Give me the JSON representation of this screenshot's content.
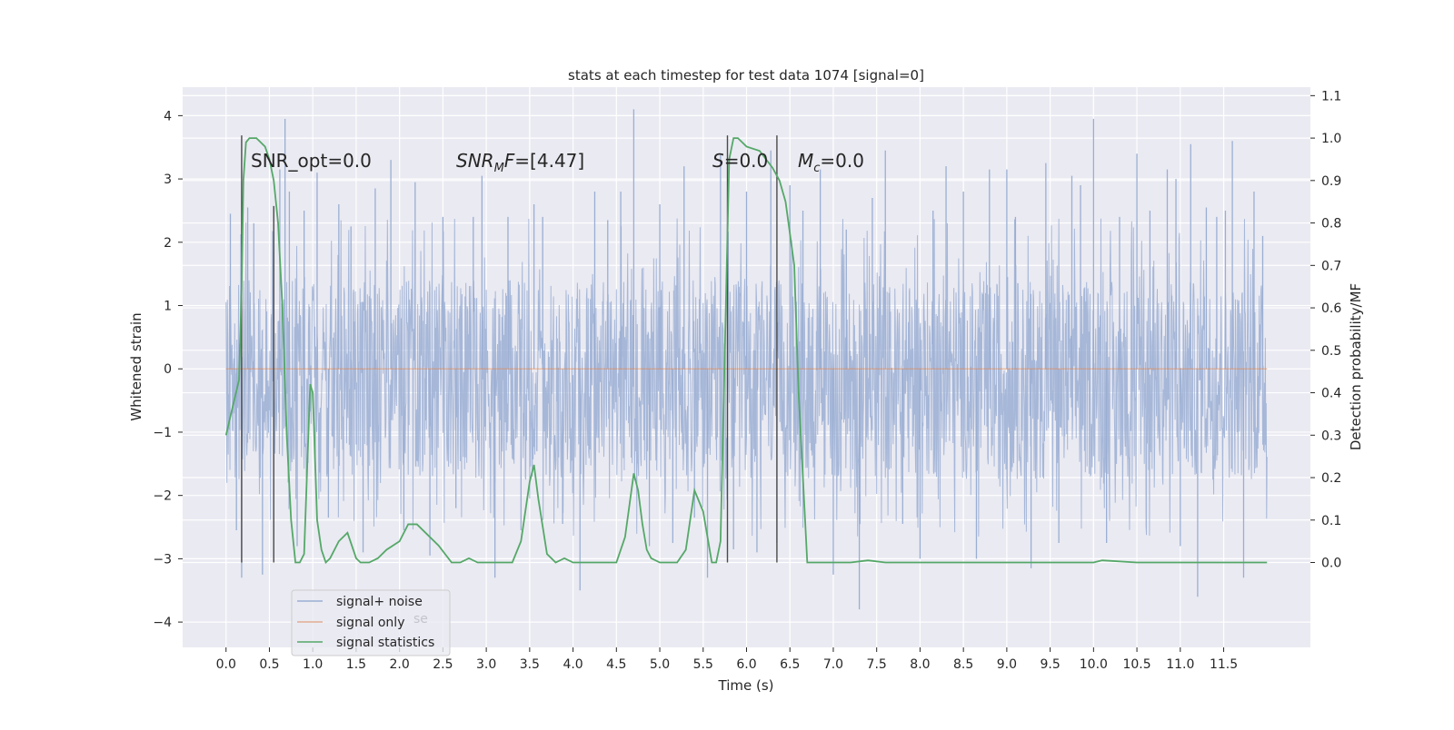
{
  "chart_data": {
    "type": "line",
    "title": "stats at each timestep for test data 1074 [signal=0]",
    "xlabel": "Time (s)",
    "ylabel": "Whitened strain",
    "ylabel_right": "Detection probability/MF",
    "xlim": [
      -0.5,
      12.5
    ],
    "ylim": [
      -4.4,
      4.45
    ],
    "ylim_right": [
      -0.2,
      1.12
    ],
    "xticks": [
      "0.0",
      "0.5",
      "1.0",
      "1.5",
      "2.0",
      "2.5",
      "3.0",
      "3.5",
      "4.0",
      "4.5",
      "5.0",
      "5.5",
      "6.0",
      "6.5",
      "7.0",
      "7.5",
      "8.0",
      "8.5",
      "9.0",
      "9.5",
      "10.0",
      "10.5",
      "11.0",
      "11.5"
    ],
    "yticks": [
      "-4",
      "-3",
      "-2",
      "-1",
      "0",
      "1",
      "2",
      "3",
      "4"
    ],
    "yticks_right": [
      "0.0",
      "0.1",
      "0.2",
      "0.3",
      "0.4",
      "0.5",
      "0.6",
      "0.7",
      "0.8",
      "0.9",
      "1.0",
      "1.1"
    ],
    "grid": true,
    "legend_position": "lower-left",
    "series": [
      {
        "name": "signal+ noise",
        "axis": "left",
        "color": "#9aaed3",
        "kind": "noise",
        "x_range": [
          0.0,
          12.0
        ],
        "band": [
          -1.75,
          1.4
        ],
        "extremes": [
          [
            0.05,
            2.45
          ],
          [
            0.12,
            -2.55
          ],
          [
            0.18,
            -3.3
          ],
          [
            0.25,
            2.55
          ],
          [
            0.32,
            2.3
          ],
          [
            0.42,
            -3.25
          ],
          [
            0.55,
            2.15
          ],
          [
            0.62,
            3.15
          ],
          [
            0.68,
            3.95
          ],
          [
            0.73,
            2.8
          ],
          [
            0.82,
            -2.8
          ],
          [
            0.9,
            2.5
          ],
          [
            1.05,
            3.1
          ],
          [
            1.18,
            -2.35
          ],
          [
            1.3,
            2.6
          ],
          [
            1.44,
            2.25
          ],
          [
            1.58,
            -2.9
          ],
          [
            1.72,
            2.85
          ],
          [
            1.9,
            3.3
          ],
          [
            2.05,
            -2.55
          ],
          [
            2.18,
            2.95
          ],
          [
            2.35,
            -2.95
          ],
          [
            2.5,
            2.4
          ],
          [
            2.65,
            -2.2
          ],
          [
            2.85,
            2.4
          ],
          [
            2.95,
            3.05
          ],
          [
            3.1,
            -3.3
          ],
          [
            3.25,
            2.4
          ],
          [
            3.4,
            -2.55
          ],
          [
            3.55,
            2.6
          ],
          [
            3.65,
            2.4
          ],
          [
            3.88,
            -2.45
          ],
          [
            4.08,
            -3.5
          ],
          [
            4.25,
            2.8
          ],
          [
            4.4,
            2.35
          ],
          [
            4.55,
            2.8
          ],
          [
            4.7,
            4.1
          ],
          [
            4.88,
            -2.8
          ],
          [
            5.0,
            2.6
          ],
          [
            5.15,
            -2.75
          ],
          [
            5.28,
            3.2
          ],
          [
            5.4,
            -2.35
          ],
          [
            5.55,
            -3.3
          ],
          [
            5.7,
            3.4
          ],
          [
            5.85,
            -2.85
          ],
          [
            6.0,
            2.8
          ],
          [
            6.12,
            -2.9
          ],
          [
            6.28,
            3.45
          ],
          [
            6.35,
            -2.75
          ],
          [
            6.5,
            2.9
          ],
          [
            6.65,
            2.5
          ],
          [
            6.85,
            3.15
          ],
          [
            7.0,
            -3.25
          ],
          [
            7.15,
            2.2
          ],
          [
            7.3,
            -3.8
          ],
          [
            7.45,
            2.7
          ],
          [
            7.6,
            3.45
          ],
          [
            7.8,
            -2.45
          ],
          [
            8.0,
            -3.0
          ],
          [
            8.15,
            2.5
          ],
          [
            8.3,
            3.2
          ],
          [
            8.5,
            2.8
          ],
          [
            8.65,
            -3.0
          ],
          [
            8.8,
            3.15
          ],
          [
            9.0,
            3.15
          ],
          [
            9.1,
            2.4
          ],
          [
            9.28,
            -3.15
          ],
          [
            9.45,
            3.25
          ],
          [
            9.6,
            -2.75
          ],
          [
            9.75,
            3.05
          ],
          [
            9.85,
            2.9
          ],
          [
            10.0,
            3.95
          ],
          [
            10.15,
            -2.75
          ],
          [
            10.3,
            2.4
          ],
          [
            10.5,
            3.4
          ],
          [
            10.65,
            2.5
          ],
          [
            10.85,
            3.15
          ],
          [
            10.95,
            3.0
          ],
          [
            11.0,
            -2.8
          ],
          [
            11.12,
            3.55
          ],
          [
            11.2,
            -3.6
          ],
          [
            11.3,
            2.55
          ],
          [
            11.42,
            2.4
          ],
          [
            11.52,
            2.5
          ],
          [
            11.6,
            3.6
          ],
          [
            11.73,
            -3.3
          ],
          [
            11.85,
            2.8
          ],
          [
            11.95,
            2.1
          ]
        ]
      },
      {
        "name": "signal only",
        "axis": "left",
        "color": "#dd8452",
        "x": [
          0.0,
          12.0
        ],
        "y": [
          0.0,
          0.0
        ]
      },
      {
        "name": "signal statistics",
        "axis": "right",
        "color": "#55a868",
        "x": [
          0.0,
          0.08,
          0.15,
          0.18,
          0.2,
          0.23,
          0.27,
          0.35,
          0.45,
          0.5,
          0.55,
          0.6,
          0.65,
          0.7,
          0.75,
          0.8,
          0.85,
          0.9,
          0.97,
          1.0,
          1.05,
          1.1,
          1.15,
          1.2,
          1.3,
          1.4,
          1.45,
          1.5,
          1.55,
          1.65,
          1.75,
          1.85,
          2.0,
          2.1,
          2.2,
          2.3,
          2.45,
          2.6,
          2.7,
          2.8,
          2.9,
          3.1,
          3.3,
          3.4,
          3.5,
          3.55,
          3.6,
          3.7,
          3.8,
          3.9,
          4.0,
          4.3,
          4.5,
          4.6,
          4.7,
          4.75,
          4.8,
          4.85,
          4.9,
          5.0,
          5.2,
          5.3,
          5.4,
          5.5,
          5.6,
          5.65,
          5.7,
          5.8,
          5.85,
          5.9,
          5.95,
          6.0,
          6.15,
          6.3,
          6.38,
          6.45,
          6.55,
          6.6,
          6.65,
          6.7,
          6.75,
          6.8,
          6.9,
          7.0,
          7.2,
          7.4,
          7.6,
          8.0,
          9.0,
          10.0,
          10.1,
          10.5,
          11.0,
          11.5,
          12.0
        ],
        "y": [
          0.3,
          0.37,
          0.43,
          0.65,
          0.9,
          0.99,
          1.0,
          1.0,
          0.98,
          0.95,
          0.9,
          0.8,
          0.6,
          0.3,
          0.1,
          0.0,
          0.0,
          0.02,
          0.42,
          0.4,
          0.1,
          0.03,
          0.0,
          0.01,
          0.05,
          0.07,
          0.04,
          0.01,
          0.0,
          0.0,
          0.01,
          0.03,
          0.05,
          0.09,
          0.09,
          0.07,
          0.04,
          0.0,
          0.0,
          0.01,
          0.0,
          0.0,
          0.0,
          0.05,
          0.19,
          0.23,
          0.15,
          0.02,
          0.0,
          0.01,
          0.0,
          0.0,
          0.0,
          0.06,
          0.21,
          0.17,
          0.09,
          0.03,
          0.01,
          0.0,
          0.0,
          0.03,
          0.17,
          0.12,
          0.0,
          0.0,
          0.05,
          0.95,
          1.0,
          1.0,
          0.99,
          0.98,
          0.97,
          0.93,
          0.9,
          0.85,
          0.7,
          0.4,
          0.2,
          0.0,
          0.0,
          0.0,
          0.0,
          0.0,
          0.0,
          0.005,
          0.0,
          0.0,
          0.0,
          0.0,
          0.005,
          0.0,
          0.0,
          0.0,
          0.0
        ]
      }
    ],
    "vlines": [
      0.18,
      0.55,
      5.78,
      6.35
    ],
    "annotations": [
      {
        "text": "SNR_opt=0.0",
        "x": 0.2,
        "y": 1.0
      },
      {
        "text": "SNR_MF=[4.47]",
        "x": 2.6,
        "y": 1.0
      },
      {
        "text": "S=0.0",
        "x": 5.6,
        "y": 1.0
      },
      {
        "text": "M_c=0.0",
        "x": 6.6,
        "y": 1.0
      }
    ]
  },
  "legend": {
    "items": [
      "signal+ noise",
      "signal only",
      "signal statistics"
    ],
    "ghost_text": "se"
  }
}
